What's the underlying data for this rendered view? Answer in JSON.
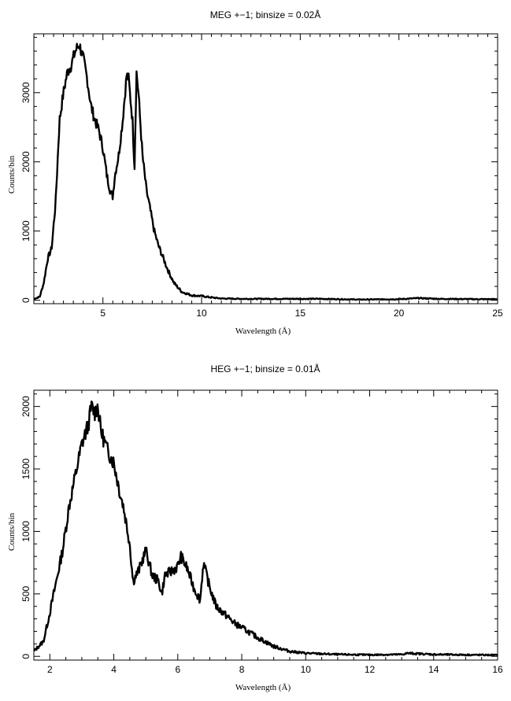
{
  "chart_data": [
    {
      "type": "line",
      "title": "MEG +−1; binsize = 0.02Å",
      "xlabel": "Wavelength (Å)",
      "ylabel": "Counts/bin",
      "xlim": [
        1.5,
        25
      ],
      "ylim": [
        -50,
        3850
      ],
      "xticks": [
        5,
        10,
        15,
        20,
        25
      ],
      "yticks": [
        0,
        1000,
        2000,
        3000
      ],
      "grid": false,
      "series": [
        {
          "x": [
            1.5,
            1.8,
            2.0,
            2.2,
            2.4,
            2.6,
            2.8,
            3.0,
            3.2,
            3.4,
            3.6,
            3.8,
            4.0,
            4.2,
            4.4,
            4.6,
            4.8,
            5.0,
            5.2,
            5.4,
            5.5,
            5.6,
            5.8,
            6.0,
            6.2,
            6.3,
            6.5,
            6.6,
            6.7,
            6.8,
            7.0,
            7.2,
            7.4,
            7.6,
            7.8,
            8.0,
            8.3,
            8.6,
            9.0,
            9.5,
            10.0,
            10.5,
            11.0,
            12.0,
            14.0,
            16.0,
            18.0,
            20.0,
            21.0,
            22.0,
            24.0,
            25.0
          ],
          "y": [
            20,
            50,
            250,
            600,
            750,
            1400,
            2600,
            3000,
            3300,
            3400,
            3600,
            3700,
            3500,
            3200,
            2800,
            2600,
            2450,
            2200,
            1800,
            1550,
            1500,
            1800,
            2100,
            2600,
            3250,
            3200,
            2600,
            1900,
            3300,
            3000,
            2100,
            1600,
            1300,
            1000,
            800,
            650,
            430,
            250,
            120,
            70,
            60,
            40,
            25,
            20,
            20,
            20,
            10,
            15,
            30,
            20,
            15,
            15
          ]
        }
      ]
    },
    {
      "type": "line",
      "title": "HEG +−1; binsize = 0.01Å",
      "xlabel": "Wavelength (Å)",
      "ylabel": "Counts/bin",
      "xlim": [
        1.5,
        16
      ],
      "ylim": [
        -30,
        2130
      ],
      "xticks": [
        2,
        4,
        6,
        8,
        10,
        12,
        14,
        16
      ],
      "yticks": [
        0,
        500,
        1000,
        1500,
        2000
      ],
      "grid": false,
      "series": [
        {
          "x": [
            1.5,
            1.8,
            2.0,
            2.2,
            2.4,
            2.6,
            2.8,
            3.0,
            3.2,
            3.3,
            3.4,
            3.5,
            3.6,
            3.8,
            4.0,
            4.2,
            4.3,
            4.5,
            4.6,
            4.8,
            5.0,
            5.2,
            5.4,
            5.5,
            5.6,
            5.8,
            6.0,
            6.1,
            6.3,
            6.5,
            6.7,
            6.8,
            7.0,
            7.2,
            7.5,
            7.8,
            8.0,
            8.5,
            9.0,
            9.5,
            10.0,
            11.0,
            12.0,
            13.0,
            13.2,
            14.0,
            15.0,
            16.0
          ],
          "y": [
            40,
            120,
            350,
            600,
            850,
            1200,
            1450,
            1700,
            1850,
            2000,
            1950,
            2000,
            1800,
            1650,
            1550,
            1300,
            1200,
            900,
            600,
            700,
            850,
            650,
            600,
            500,
            650,
            680,
            720,
            800,
            700,
            550,
            450,
            750,
            550,
            400,
            330,
            260,
            230,
            150,
            80,
            40,
            25,
            15,
            12,
            15,
            25,
            15,
            12,
            10
          ]
        }
      ]
    }
  ]
}
